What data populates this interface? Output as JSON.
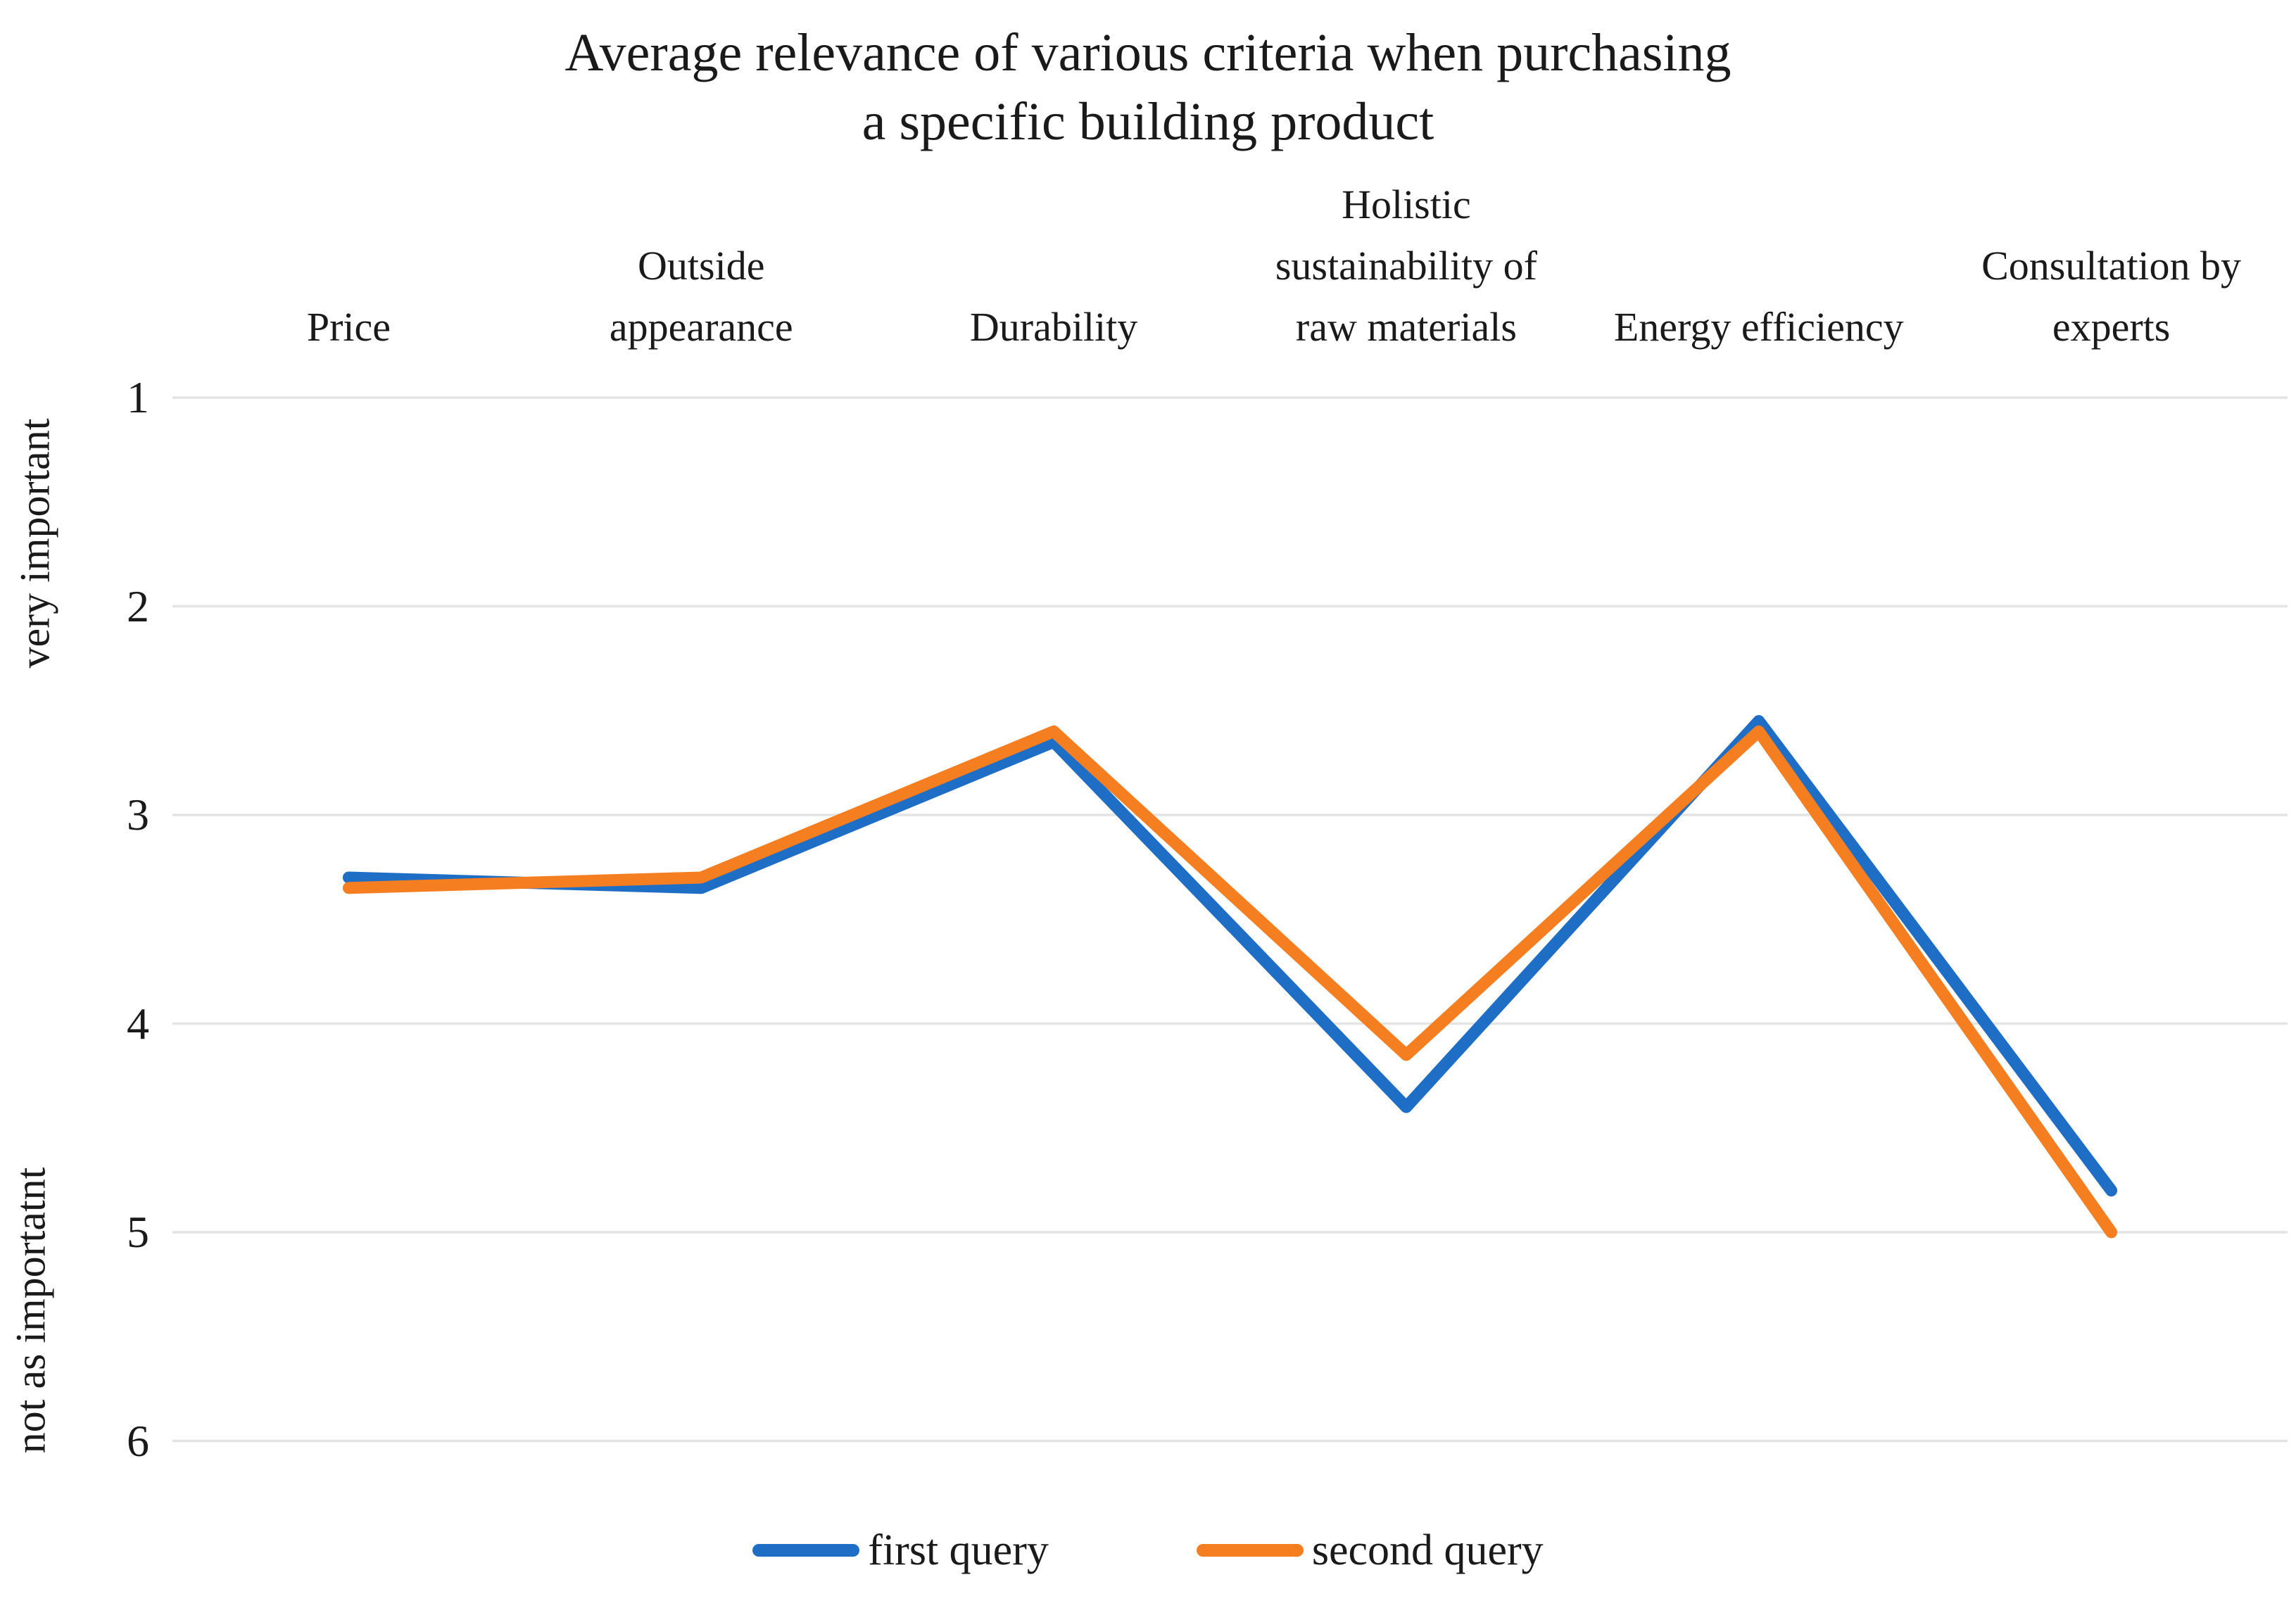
{
  "chart_data": {
    "type": "line",
    "title": "Average relevance of various criteria when purchasing\na specific building product",
    "categories": [
      "Price",
      "Outside appearance",
      "Durability",
      "Holistic sustainability of raw materials",
      "Energy efficiency",
      "Consultation by experts"
    ],
    "category_labels": [
      "Price",
      "Outside\nappearance",
      "Durability",
      "Holistic\nsustainability of\nraw materials",
      "Energy efficiency",
      "Consultation by\nexperts"
    ],
    "series": [
      {
        "name": "first query",
        "color": "#1f6ec6",
        "values": [
          3.3,
          3.35,
          2.65,
          4.4,
          2.55,
          4.8
        ]
      },
      {
        "name": "second query",
        "color": "#f57e20",
        "values": [
          3.35,
          3.3,
          2.6,
          4.15,
          2.6,
          5.0
        ]
      }
    ],
    "y_axis": {
      "ticks": [
        1,
        2,
        3,
        4,
        5,
        6
      ],
      "min": 1,
      "max": 6,
      "inverted": true,
      "annotation_top": "very important",
      "annotation_bottom": "not as importatnt"
    },
    "x_axis": {
      "labels_position": "top"
    },
    "legend_position": "bottom",
    "grid": "horizontal",
    "gridline_color": "#e4e4e4",
    "background_color": "#ffffff"
  }
}
